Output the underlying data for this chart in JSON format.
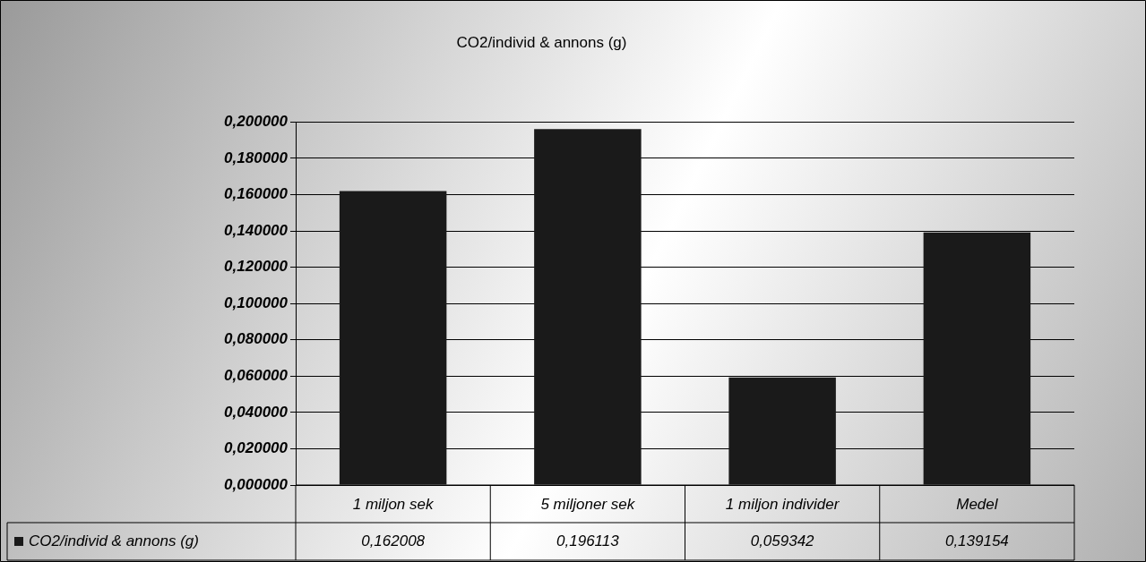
{
  "chart_data": {
    "type": "bar",
    "title": "CO2/individ & annons (g)",
    "categories": [
      "1 miljon sek",
      "5 miljoner sek",
      "1 miljon individer",
      "Medel"
    ],
    "series": [
      {
        "name": "CO2/individ & annons (g)",
        "color": "#1a1a1a",
        "values": [
          0.162008,
          0.196113,
          0.059342,
          0.139154
        ],
        "value_labels": [
          "0,162008",
          "0,196113",
          "0,059342",
          "0,139154"
        ]
      }
    ],
    "ylim": [
      0,
      0.2
    ],
    "yticks": [
      {
        "value": 0,
        "label": "0,000000"
      },
      {
        "value": 0.02,
        "label": "0,020000"
      },
      {
        "value": 0.04,
        "label": "0,040000"
      },
      {
        "value": 0.06,
        "label": "0,060000"
      },
      {
        "value": 0.08,
        "label": "0,080000"
      },
      {
        "value": 0.1,
        "label": "0,100000"
      },
      {
        "value": 0.12,
        "label": "0,120000"
      },
      {
        "value": 0.14,
        "label": "0,140000"
      },
      {
        "value": 0.16,
        "label": "0,160000"
      },
      {
        "value": 0.18,
        "label": "0,180000"
      },
      {
        "value": 0.2,
        "label": "0,200000"
      }
    ],
    "grid": "y",
    "legend": "bottom left"
  }
}
